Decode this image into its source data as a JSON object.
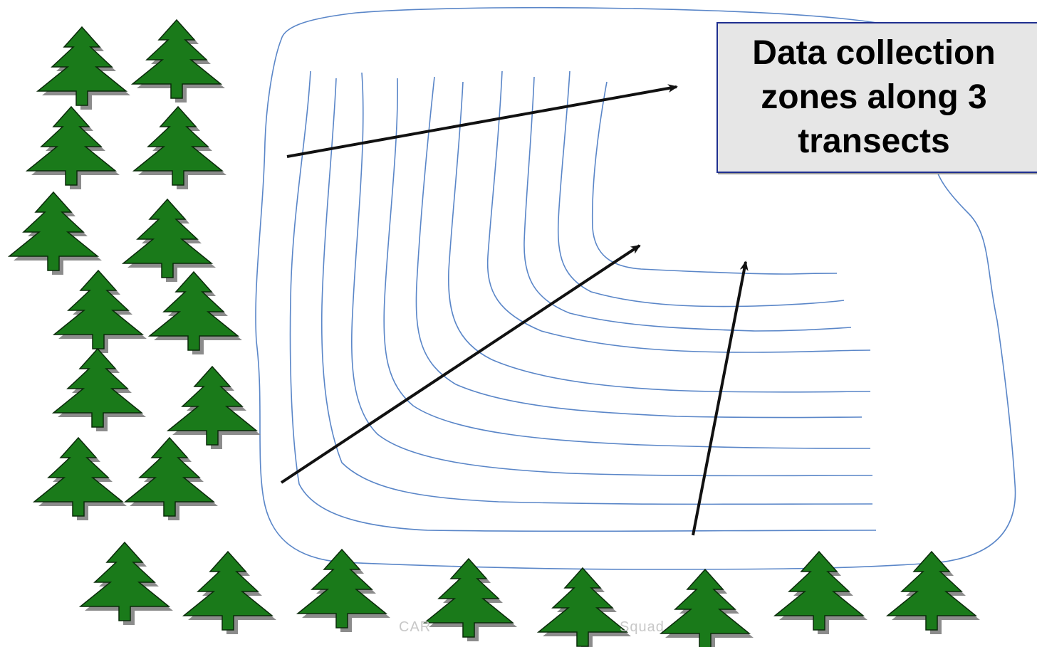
{
  "title": "Data collection zones along 3 transects",
  "watermark": {
    "left": "CAR",
    "right": "Squad"
  },
  "colors": {
    "contour": "#5a86c8",
    "arrow": "#111111",
    "tree_fill": "#1a7a1a",
    "tree_shadow": "#8c8c8c",
    "tree_outline": "#0a2a0a",
    "box_fill": "#e6e6e6",
    "box_border": "#1f2f8f"
  },
  "icons": [
    "pine-tree-icon",
    "transect-arrow"
  ]
}
